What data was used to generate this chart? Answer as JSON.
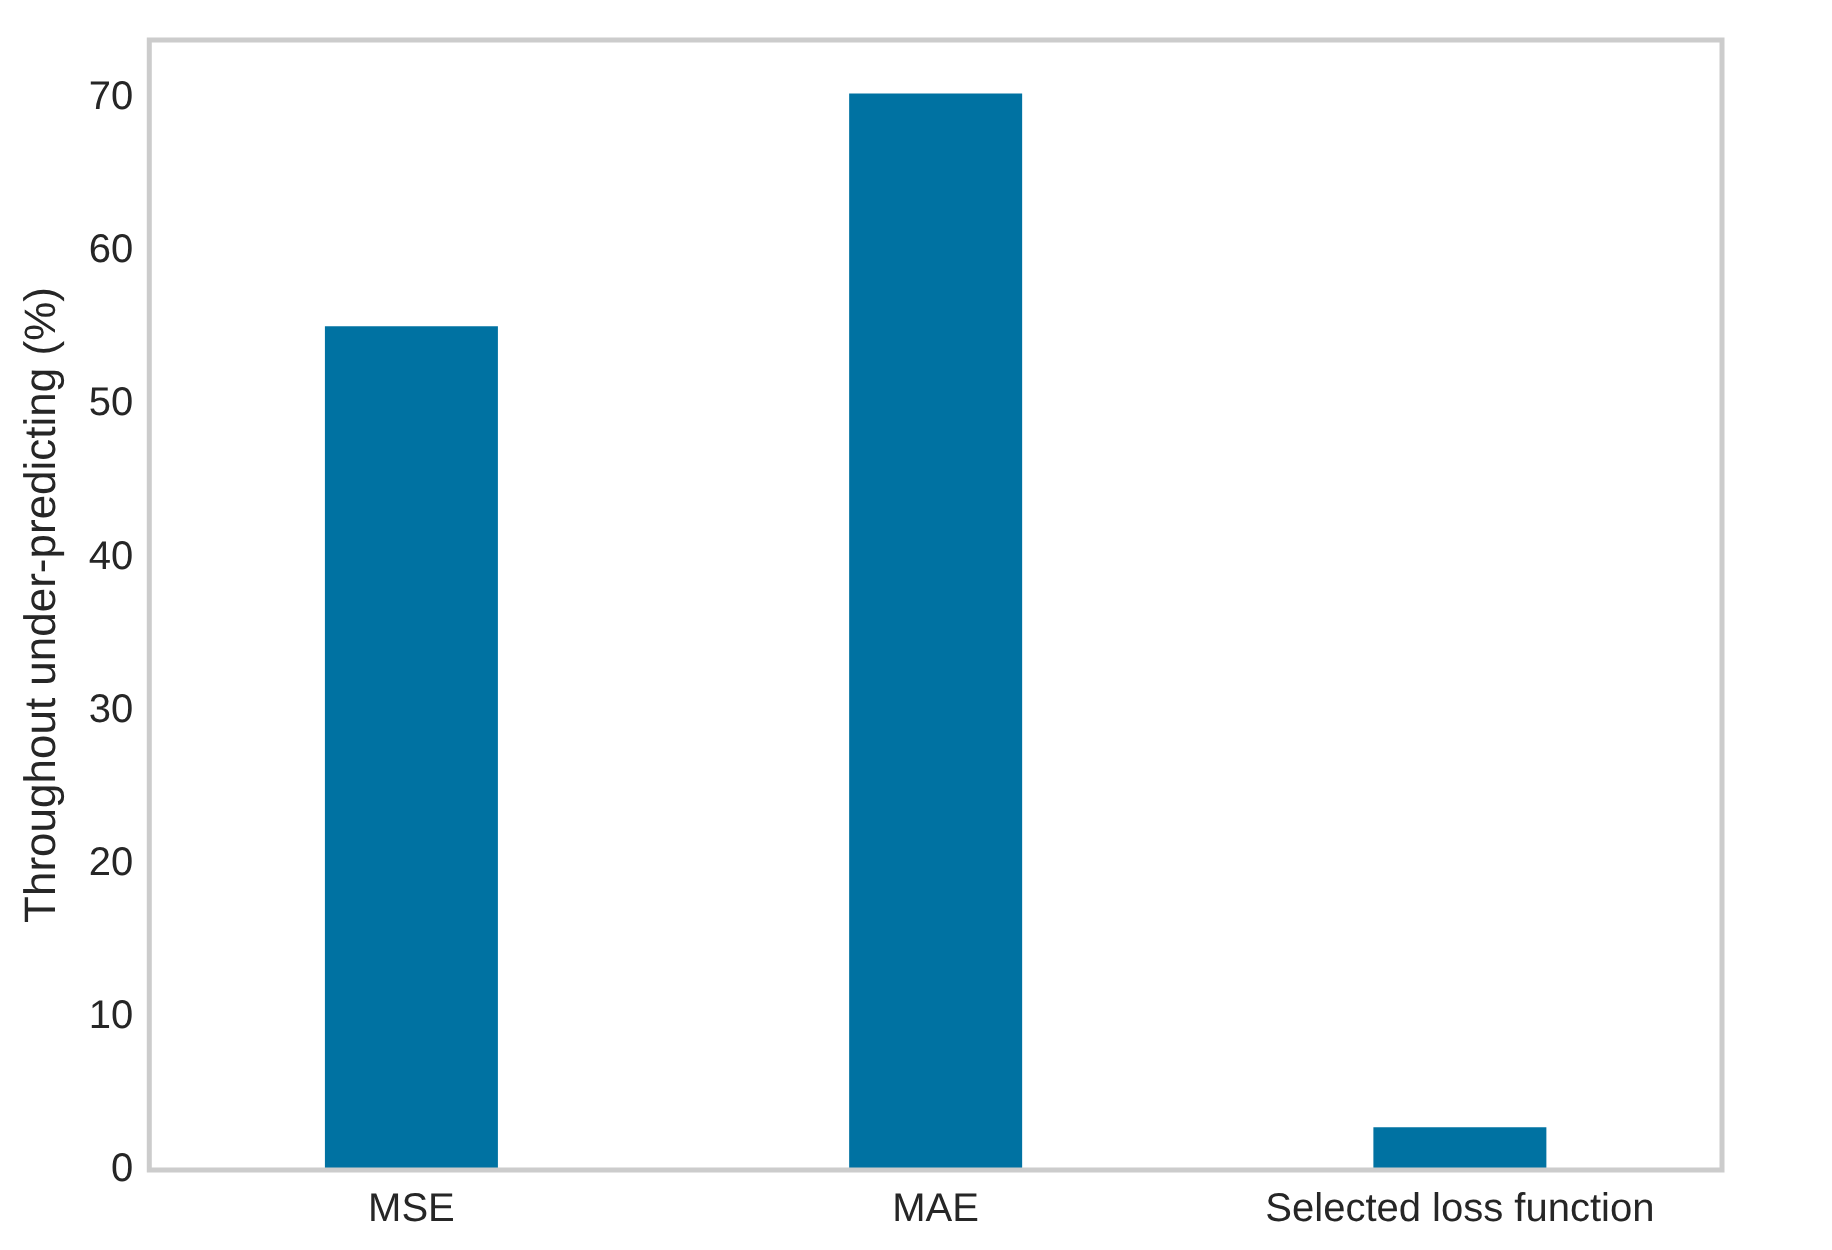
{
  "chart_data": {
    "type": "bar",
    "ylabel": "Throughout under-predicting (%)",
    "categories": [
      "MSE",
      "MAE",
      "Selected loss function"
    ],
    "values": [
      55.1,
      70.3,
      2.8
    ],
    "color": "#0072a2",
    "ylim": [
      0,
      73.8
    ],
    "yticks": [
      0,
      10,
      20,
      30,
      40,
      50,
      60,
      70
    ],
    "grid": false,
    "legend": false
  }
}
